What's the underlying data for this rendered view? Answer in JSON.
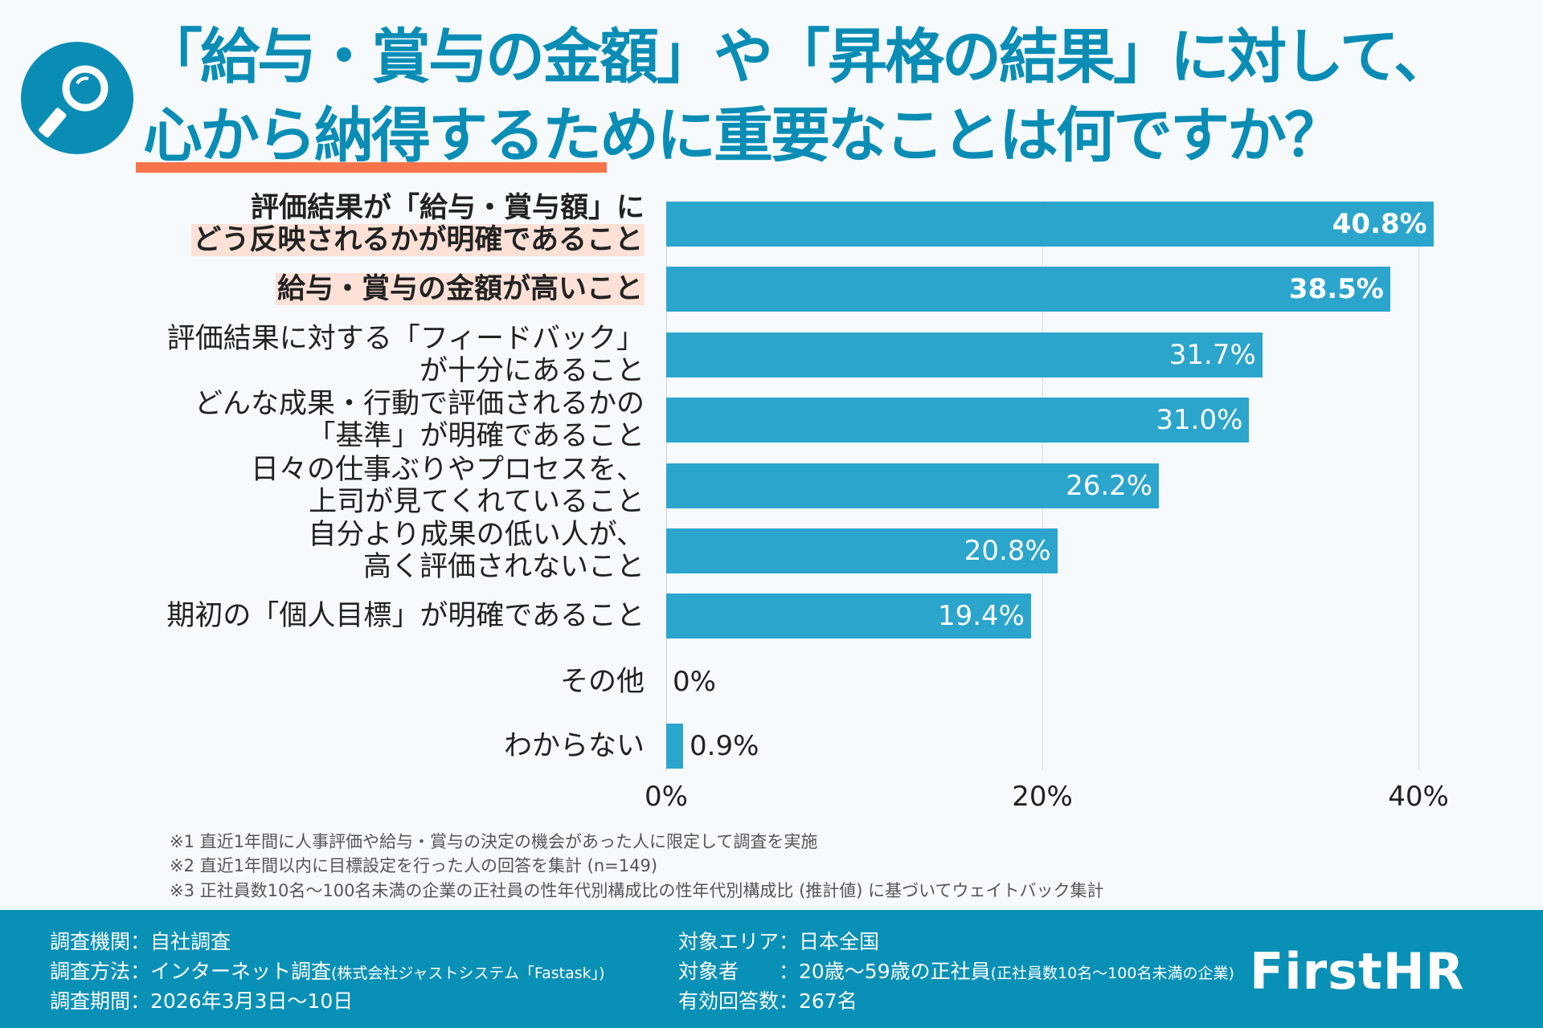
{
  "title": {
    "line1": "「給与・賞与の金額」や「昇格の結果」に対して、",
    "line2": "心から納得するために重要なことは何ですか？"
  },
  "colors": {
    "bar": "#2ba5cc",
    "title": "#0a8db5",
    "underline": "#f5744a",
    "highlight": "#fde1d7",
    "footer": "#0990b6"
  },
  "icon": "magnifier-icon",
  "chart_data": {
    "type": "bar",
    "orientation": "horizontal",
    "categories": [
      {
        "line1": "評価結果が「給与・賞与額」に",
        "line2": "どう反映されるかが明確であること",
        "bold": true
      },
      {
        "line1": "給与・賞与の金額が高いこと",
        "bold": true
      },
      {
        "line1": "評価結果に対する「フィードバック」",
        "line2": "が十分にあること"
      },
      {
        "line1": "どんな成果・行動で評価されるかの",
        "line2": "「基準」が明確であること"
      },
      {
        "line1": "日々の仕事ぶりやプロセスを、",
        "line2": "上司が見てくれていること"
      },
      {
        "line1": "自分より成果の低い人が、",
        "line2": "高く評価されないこと"
      },
      {
        "line1": "期初の「個人目標」が明確であること"
      },
      {
        "line1": "その他"
      },
      {
        "line1": "わからない"
      }
    ],
    "values": [
      40.8,
      38.5,
      31.7,
      31.0,
      26.2,
      20.8,
      19.4,
      0,
      0.9
    ],
    "labels": [
      "40.8%",
      "38.5%",
      "31.7%",
      "31.0%",
      "26.2%",
      "20.8%",
      "19.4%",
      "0%",
      "0.9%"
    ],
    "xlim": [
      0,
      40
    ],
    "xticks": [
      "0%",
      "20%",
      "40%"
    ],
    "grid": true
  },
  "notes": [
    "※1 直近1年間に人事評価や給与・賞与の決定の機会があった人に限定して調査を実施",
    "※2 直近1年間以内に目標設定を行った人の回答を集計 (n=149)",
    "※3 正社員数10名〜100名未満の企業の正社員の性年代別構成比の性年代別構成比 (推計値) に基づいてウェイトバック集計"
  ],
  "footer": {
    "agency": "調査機関：自社調査",
    "method": "調査方法：インターネット調査",
    "method_note": "(株式会社ジャストシステム「Fastask」)",
    "period": "調査期間：2026年3月3日〜10日",
    "area": "対象エリア：日本全国",
    "target": "対象者　　：20歳〜59歳の正社員",
    "target_note": "(正社員数10名〜100名未満の企業)",
    "responses": "有効回答数：267名",
    "logo": "FirstHR"
  }
}
